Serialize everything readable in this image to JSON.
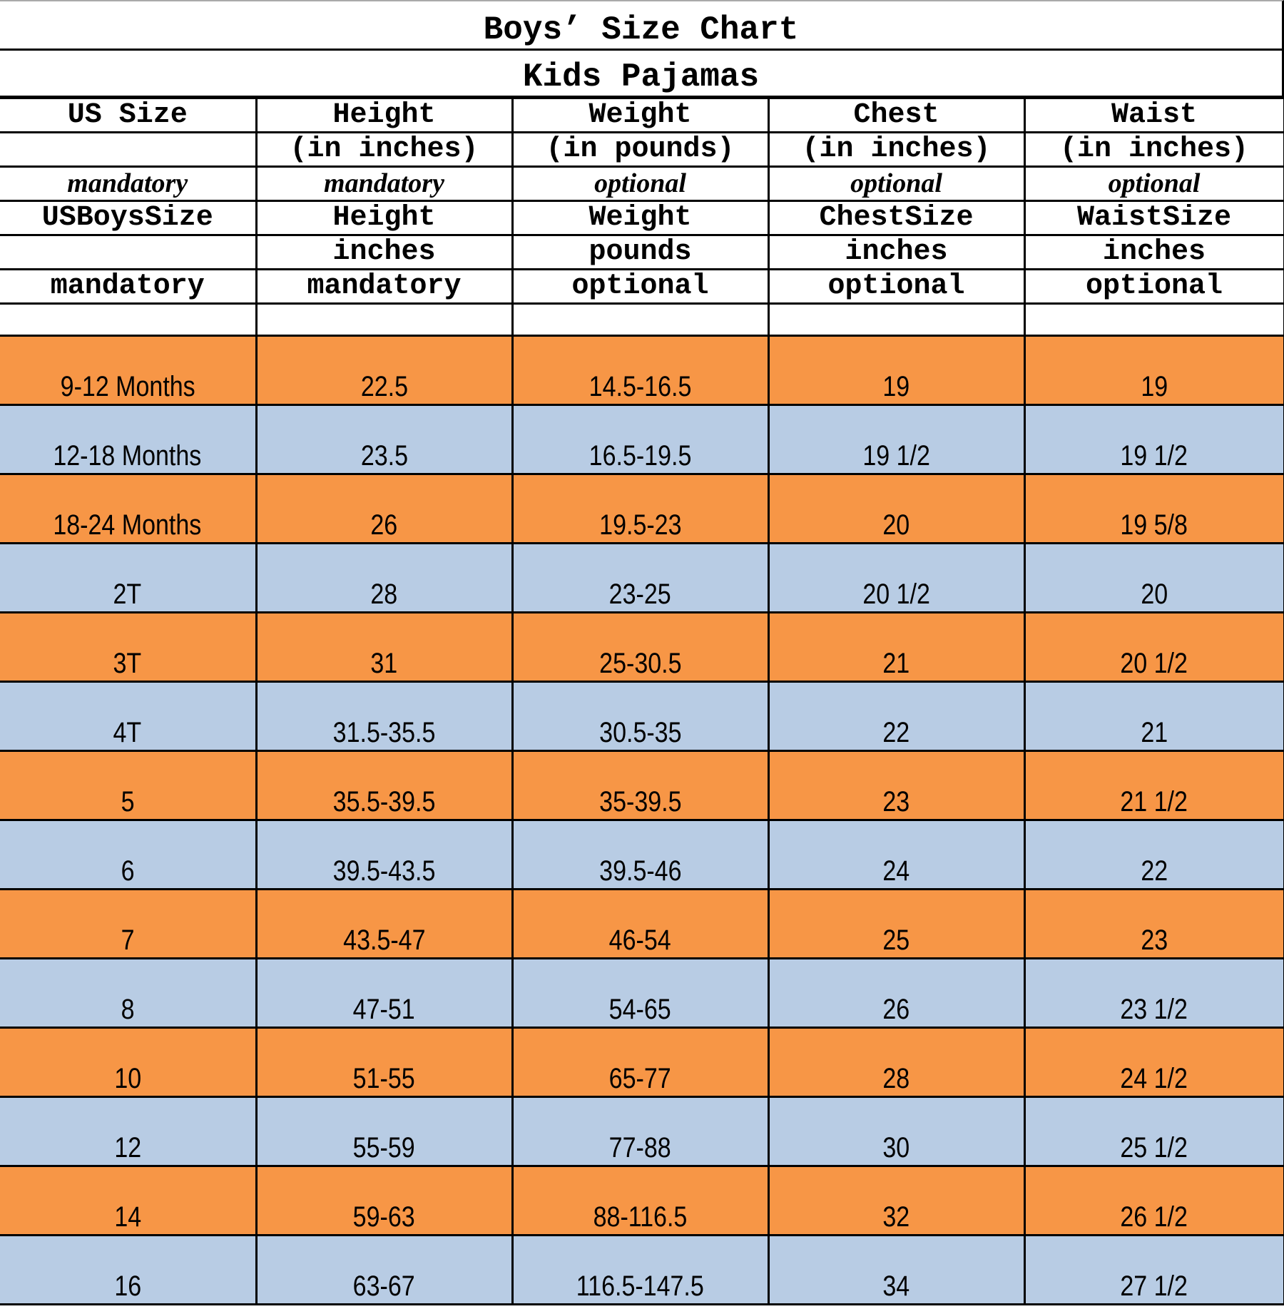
{
  "title": "Boys’ Size Chart",
  "subtitle": "Kids Pajamas",
  "colors": {
    "orange": "#F79646",
    "blue": "#B8CCE4"
  },
  "header_rows": [
    [
      "US Size",
      "Height",
      "Weight",
      "Chest",
      "Waist"
    ],
    [
      "",
      "(in inches)",
      "(in pounds)",
      "(in inches)",
      "(in inches)"
    ],
    [
      "mandatory",
      "mandatory",
      "optional",
      "optional",
      "optional"
    ],
    [
      "USBoysSize",
      "Height",
      "Weight",
      "ChestSize",
      "WaistSize"
    ],
    [
      "",
      "inches",
      "pounds",
      "inches",
      "inches"
    ],
    [
      "mandatory",
      "mandatory",
      "optional",
      "optional",
      "optional"
    ]
  ],
  "rows": [
    [
      "9-12 Months",
      "22.5",
      "14.5-16.5",
      "19",
      "19"
    ],
    [
      "12-18 Months",
      "23.5",
      "16.5-19.5",
      "19 1/2",
      "19 1/2"
    ],
    [
      "18-24 Months",
      "26",
      "19.5-23",
      "20",
      "19 5/8"
    ],
    [
      "2T",
      "28",
      "23-25",
      "20 1/2",
      "20"
    ],
    [
      "3T",
      "31",
      "25-30.5",
      "21",
      "20 1/2"
    ],
    [
      "4T",
      "31.5-35.5",
      "30.5-35",
      "22",
      "21"
    ],
    [
      "5",
      "35.5-39.5",
      "35-39.5",
      "23",
      "21 1/2"
    ],
    [
      "6",
      "39.5-43.5",
      "39.5-46",
      "24",
      "22"
    ],
    [
      "7",
      "43.5-47",
      "46-54",
      "25",
      "23"
    ],
    [
      "8",
      "47-51",
      "54-65",
      "26",
      "23 1/2"
    ],
    [
      "10",
      "51-55",
      "65-77",
      "28",
      "24 1/2"
    ],
    [
      "12",
      "55-59",
      "77-88",
      "30",
      "25 1/2"
    ],
    [
      "14",
      "59-63",
      "88-116.5",
      "32",
      "26 1/2"
    ],
    [
      "16",
      "63-67",
      "116.5-147.5",
      "34",
      "27 1/2"
    ]
  ]
}
